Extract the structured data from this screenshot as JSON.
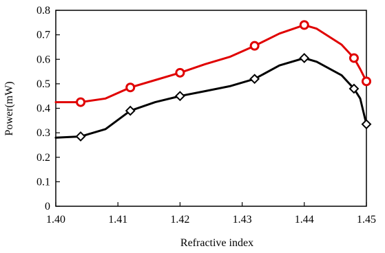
{
  "chart_data": {
    "type": "line",
    "title": "",
    "xlabel": "Refractive index",
    "ylabel": "Power(mW)",
    "xlim": [
      1.4,
      1.45
    ],
    "ylim": [
      0,
      0.8
    ],
    "xticks": [
      "1.40",
      "1.41",
      "1.42",
      "1.43",
      "1.44",
      "1.45"
    ],
    "yticks": [
      "0",
      "0.1",
      "0.2",
      "0.3",
      "0.4",
      "0.5",
      "0.6",
      "0.7",
      "0.8"
    ],
    "grid": false,
    "legend": "none",
    "series": [
      {
        "color": "#e00000",
        "marker": "circle",
        "marker_x": [
          1.404,
          1.412,
          1.42,
          1.432,
          1.44,
          1.448,
          1.45
        ],
        "marker_y": [
          0.425,
          0.485,
          0.545,
          0.655,
          0.74,
          0.605,
          0.51
        ],
        "curve_x": [
          1.4,
          1.404,
          1.408,
          1.412,
          1.416,
          1.42,
          1.424,
          1.428,
          1.432,
          1.436,
          1.44,
          1.442,
          1.446,
          1.448,
          1.449,
          1.45
        ],
        "curve_y": [
          0.425,
          0.425,
          0.44,
          0.485,
          0.515,
          0.545,
          0.58,
          0.61,
          0.655,
          0.705,
          0.74,
          0.725,
          0.66,
          0.605,
          0.56,
          0.51
        ]
      },
      {
        "color": "#000000",
        "marker": "diamond",
        "marker_x": [
          1.404,
          1.412,
          1.42,
          1.432,
          1.44,
          1.448,
          1.45
        ],
        "marker_y": [
          0.285,
          0.39,
          0.45,
          0.52,
          0.605,
          0.48,
          0.335
        ],
        "curve_x": [
          1.4,
          1.404,
          1.408,
          1.412,
          1.416,
          1.42,
          1.424,
          1.428,
          1.432,
          1.436,
          1.44,
          1.442,
          1.446,
          1.448,
          1.449,
          1.45
        ],
        "curve_y": [
          0.28,
          0.285,
          0.315,
          0.39,
          0.425,
          0.45,
          0.47,
          0.49,
          0.52,
          0.575,
          0.605,
          0.59,
          0.535,
          0.48,
          0.44,
          0.335
        ]
      }
    ]
  }
}
